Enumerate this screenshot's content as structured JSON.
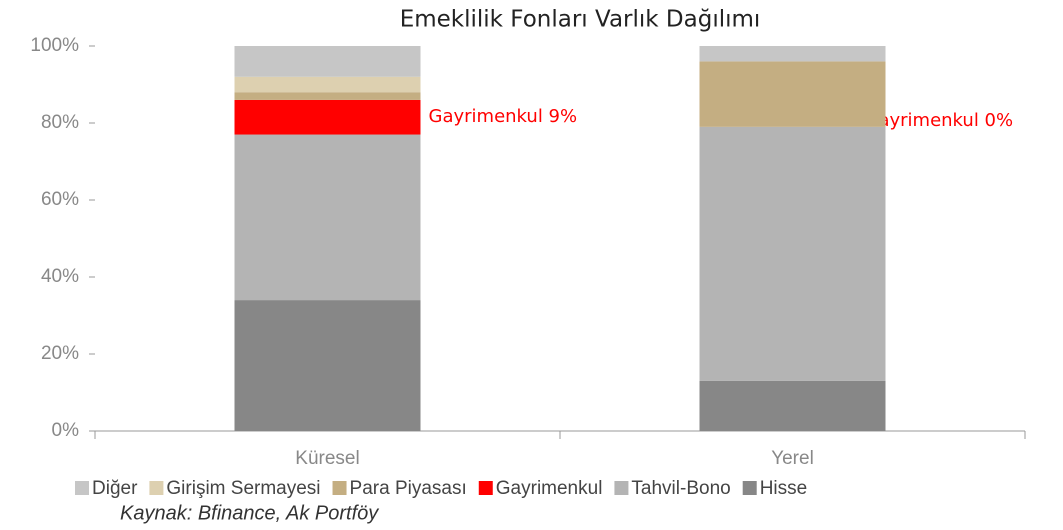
{
  "chart_data": {
    "type": "stacked_bar",
    "title": "Emeklilik Fonları Varlık Dağılımı",
    "categories": [
      "Küresel",
      "Yerel"
    ],
    "series": [
      {
        "name": "Diğer",
        "color": "#c6c6c6",
        "values": [
          8,
          4
        ]
      },
      {
        "name": "Girişim Sermayesi",
        "color": "#ddd0b0",
        "values": [
          4,
          0
        ]
      },
      {
        "name": "Para Piyasası",
        "color": "#c4ae82",
        "values": [
          2,
          17
        ]
      },
      {
        "name": "Gayrimenkul",
        "color": "#ff0000",
        "values": [
          9,
          0
        ]
      },
      {
        "name": "Tahvil-Bono",
        "color": "#b4b4b4",
        "values": [
          43,
          66
        ]
      },
      {
        "name": "Hisse",
        "color": "#878787",
        "values": [
          34,
          13
        ]
      }
    ],
    "ylim": [
      0,
      100
    ],
    "yticks": [
      {
        "value": 0,
        "label": "0%"
      },
      {
        "value": 20,
        "label": "20%"
      },
      {
        "value": 40,
        "label": "40%"
      },
      {
        "value": 60,
        "label": "60%"
      },
      {
        "value": 80,
        "label": "80%"
      },
      {
        "value": 100,
        "label": "100%"
      }
    ],
    "annotations": [
      "Gayrimenkul 9%",
      "Gayrimenkul 0%"
    ],
    "source": "Kaynak: Bfinance, Ak Portföy",
    "legend": "bottom"
  }
}
